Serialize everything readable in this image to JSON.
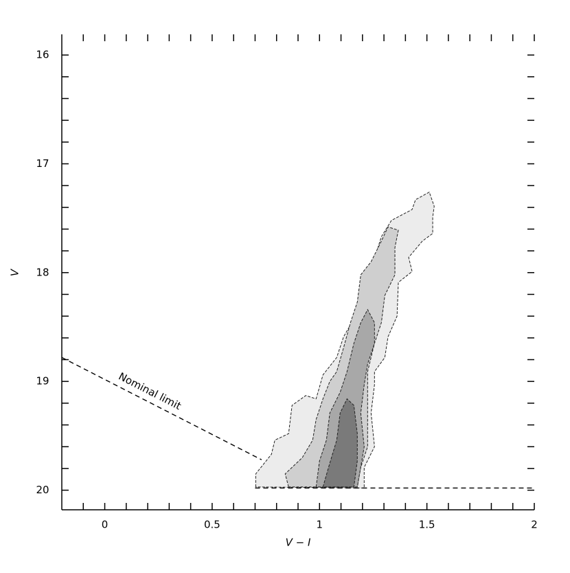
{
  "chart_data": {
    "type": "contour",
    "xlabel": "V − I",
    "ylabel": "V",
    "annotation": "Nominal limit",
    "xlim": [
      -0.2,
      2
    ],
    "ylim": [
      20.18,
      15.81
    ],
    "xticks": [
      0,
      0.5,
      1,
      1.5,
      2
    ],
    "yticks": [
      16,
      17,
      18,
      19,
      20
    ],
    "xminorticks": [
      -0.1,
      0.1,
      0.2,
      0.3,
      0.4,
      0.6,
      0.7,
      0.8,
      0.9,
      1.1,
      1.2,
      1.3,
      1.4,
      1.6,
      1.7,
      1.8,
      1.9
    ],
    "yminorticks": [
      16.2,
      16.4,
      16.6,
      16.8,
      17.2,
      17.4,
      17.6,
      17.8,
      18.2,
      18.4,
      18.6,
      18.8,
      19.2,
      19.4,
      19.6,
      19.8
    ],
    "contours": [
      {
        "color": "#ececec",
        "x": [
          0.703,
          0.703,
          0.776,
          0.792,
          0.856,
          0.872,
          0.936,
          0.984,
          1.016,
          1.08,
          1.112,
          1.176,
          1.192,
          1.24,
          1.272,
          1.288,
          1.335,
          1.431,
          1.447,
          1.511,
          1.534,
          1.527,
          1.527,
          1.479,
          1.415,
          1.431,
          1.367,
          1.361,
          1.319,
          1.304,
          1.256,
          1.256,
          1.24,
          1.256,
          1.208,
          1.208
        ],
        "y": [
          19.97,
          19.85,
          19.67,
          19.54,
          19.48,
          19.22,
          19.13,
          19.16,
          18.94,
          18.78,
          18.59,
          18.37,
          18.09,
          18.05,
          17.77,
          17.67,
          17.52,
          17.42,
          17.33,
          17.26,
          17.39,
          17.49,
          17.64,
          17.71,
          17.86,
          17.99,
          18.09,
          18.4,
          18.59,
          18.78,
          18.91,
          19.03,
          19.29,
          19.6,
          19.79,
          19.98
        ]
      },
      {
        "color": "#cfcfcf",
        "x": [
          0.856,
          0.84,
          0.92,
          0.968,
          0.984,
          1.016,
          1.048,
          1.08,
          1.112,
          1.144,
          1.176,
          1.192,
          1.24,
          1.288,
          1.319,
          1.367,
          1.351,
          1.351,
          1.304,
          1.288,
          1.256,
          1.224,
          1.224,
          1.224,
          1.192,
          1.176
        ],
        "y": [
          19.97,
          19.85,
          19.7,
          19.54,
          19.35,
          19.16,
          19.0,
          18.91,
          18.69,
          18.46,
          18.27,
          18.02,
          17.9,
          17.71,
          17.58,
          17.61,
          17.77,
          18.02,
          18.21,
          18.46,
          18.65,
          18.91,
          19.29,
          19.6,
          19.79,
          19.97
        ]
      },
      {
        "color": "#a8a8a8",
        "x": [
          0.984,
          1.0,
          1.032,
          1.048,
          1.096,
          1.128,
          1.16,
          1.192,
          1.224,
          1.256,
          1.256,
          1.224,
          1.208,
          1.192,
          1.208,
          1.176
        ],
        "y": [
          19.97,
          19.73,
          19.54,
          19.29,
          19.1,
          18.91,
          18.65,
          18.46,
          18.34,
          18.46,
          18.65,
          18.84,
          19.03,
          19.29,
          19.6,
          19.97
        ]
      },
      {
        "color": "#7a7a7a",
        "x": [
          1.016,
          1.042,
          1.08,
          1.096,
          1.128,
          1.16,
          1.176,
          1.176,
          1.16
        ],
        "y": [
          19.97,
          19.79,
          19.54,
          19.29,
          19.16,
          19.22,
          19.48,
          19.73,
          19.97
        ]
      }
    ],
    "limit_lines": [
      {
        "x": [
          -0.2,
          0.73
        ],
        "y": [
          18.78,
          19.72
        ]
      },
      {
        "x": [
          0.7,
          2
        ],
        "y": [
          19.98,
          19.98
        ]
      }
    ]
  }
}
